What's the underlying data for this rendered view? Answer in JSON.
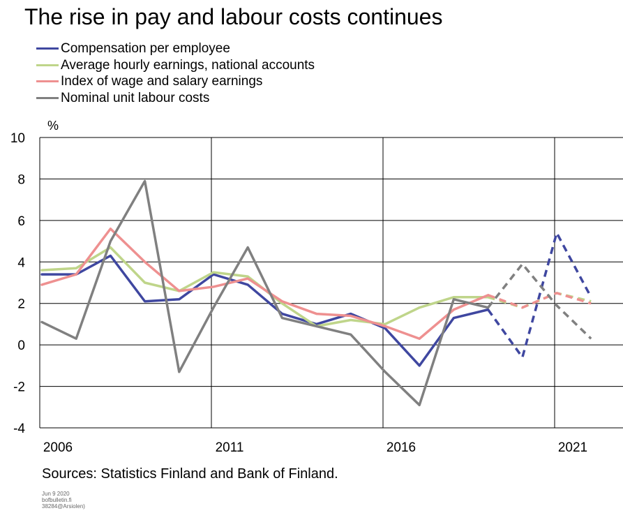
{
  "title": "The rise in pay and labour costs continues",
  "unit": "%",
  "sources": "Sources: Statistics Finland and Bank of Finland.",
  "footnote": [
    "Jun 9 2020",
    "bofbulletin.fi",
    "38284@Arsiolen)"
  ],
  "chart_data": {
    "type": "line",
    "x": [
      2006,
      2007,
      2008,
      2009,
      2010,
      2011,
      2012,
      2013,
      2014,
      2015,
      2016,
      2017,
      2018,
      2019,
      2020,
      2021,
      2022
    ],
    "x_ticks": [
      "2006",
      "2011",
      "2016",
      "2021"
    ],
    "y_ticks": [
      "10",
      "8",
      "6",
      "4",
      "2",
      "0",
      "-2",
      "-4"
    ],
    "ylim": [
      -4,
      10
    ],
    "grid": true,
    "legend_position": "top-left",
    "forecast_start": 2019,
    "series": [
      {
        "name": "Compensation per employee",
        "color": "#3f47a0",
        "values": [
          3.4,
          3.4,
          4.3,
          2.1,
          2.2,
          3.4,
          2.9,
          1.5,
          1.0,
          1.5,
          0.8,
          -1.0,
          1.3,
          1.7,
          -0.6,
          5.4,
          2.3
        ]
      },
      {
        "name": "Average hourly earnings, national accounts",
        "color": "#bfd58a",
        "values": [
          3.6,
          3.7,
          4.7,
          3.0,
          2.6,
          3.5,
          3.3,
          2.0,
          0.9,
          1.2,
          1.0,
          1.8,
          2.3,
          2.3,
          1.8,
          2.5,
          2.1
        ]
      },
      {
        "name": "Index of wage and salary earnings",
        "color": "#ee9090",
        "values": [
          2.9,
          3.4,
          5.6,
          4.0,
          2.6,
          2.8,
          3.2,
          2.1,
          1.5,
          1.4,
          0.9,
          0.3,
          1.7,
          2.4,
          1.8,
          2.5,
          2.0
        ]
      },
      {
        "name": "Nominal unit labour costs",
        "color": "#808080",
        "values": [
          1.1,
          0.3,
          5.0,
          7.9,
          -1.3,
          1.8,
          4.7,
          1.3,
          0.9,
          0.5,
          -1.3,
          -2.9,
          2.2,
          1.8,
          3.9,
          1.9,
          0.3
        ]
      }
    ]
  }
}
